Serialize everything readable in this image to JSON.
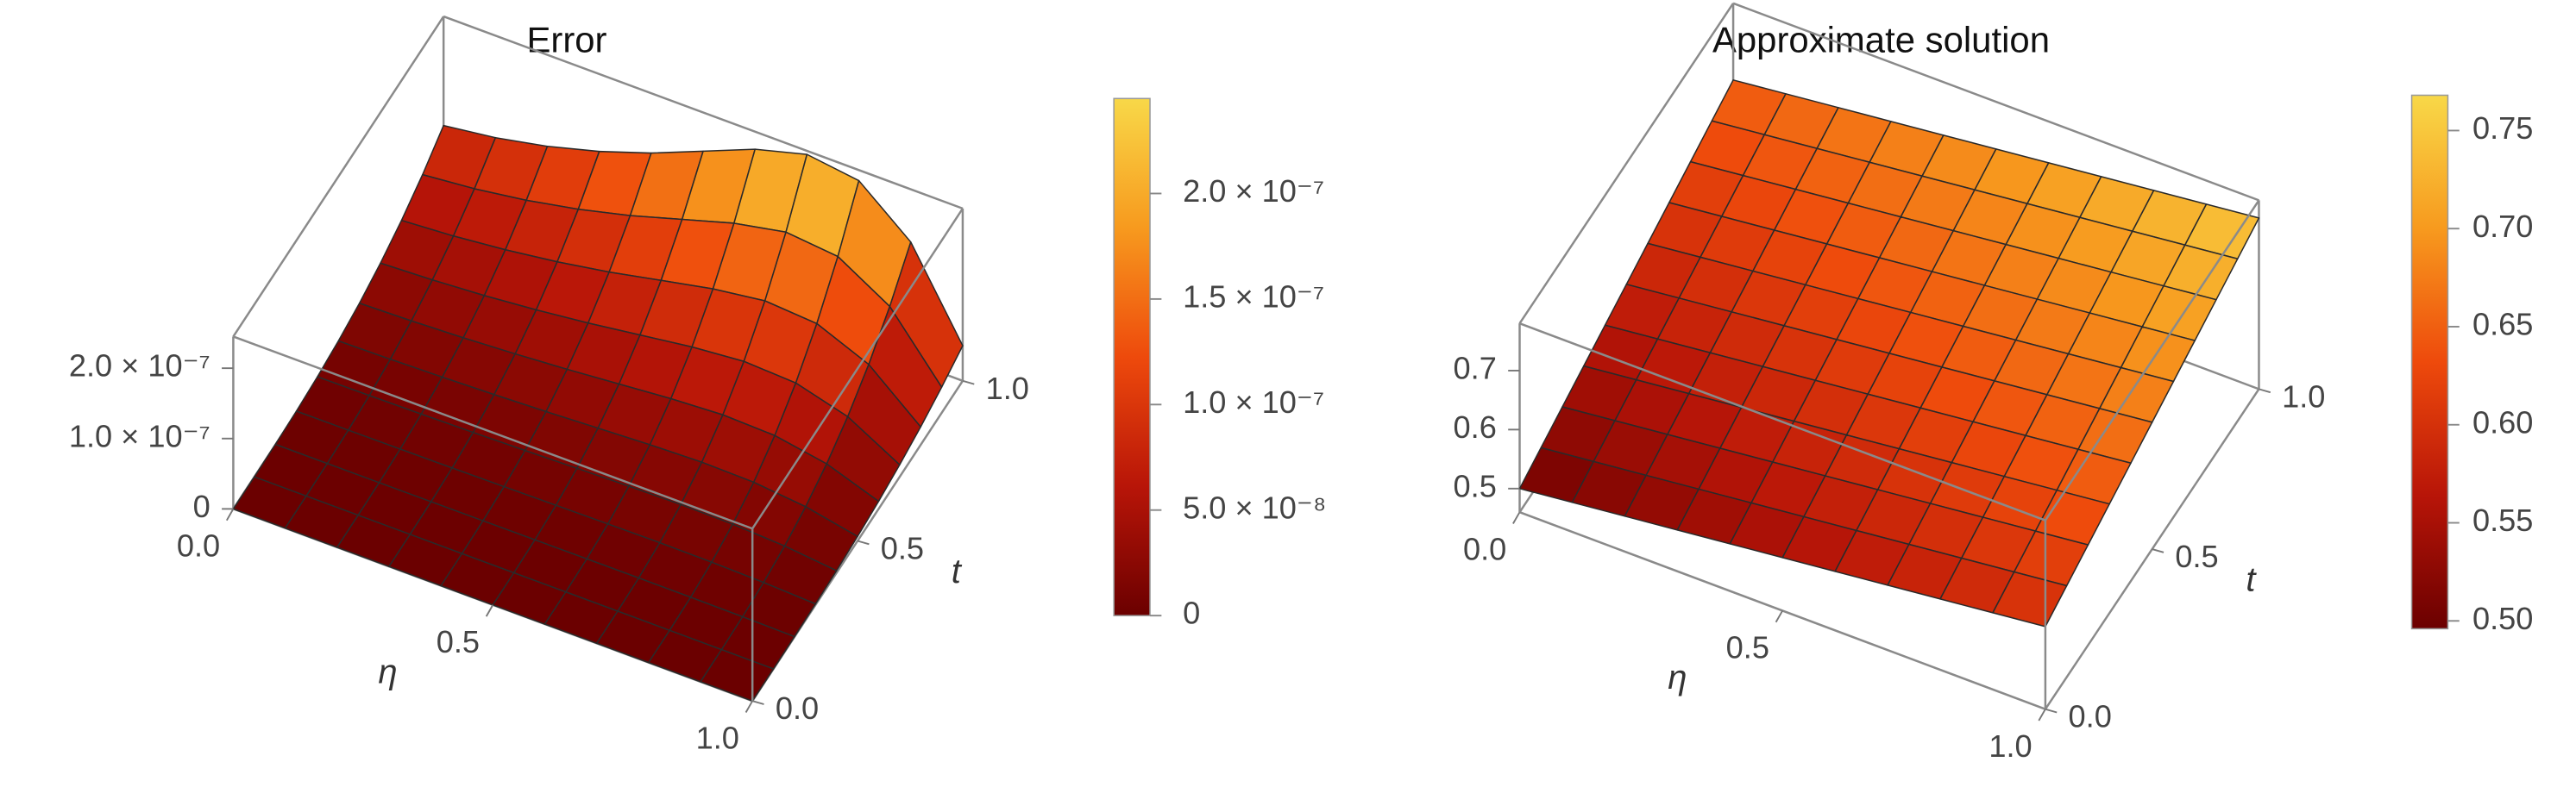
{
  "chart_data": [
    {
      "type": "surface3d",
      "title": "Error",
      "xlabel": "η",
      "ylabel": "t",
      "x": [
        0,
        0.1,
        0.2,
        0.3,
        0.4,
        0.5,
        0.6,
        0.7,
        0.8,
        0.9,
        1
      ],
      "y": [
        0,
        0.1,
        0.2,
        0.3,
        0.4,
        0.5,
        0.6,
        0.7,
        0.8,
        0.9,
        1
      ],
      "z": [
        [
          0,
          0,
          0,
          0,
          0,
          0,
          0,
          0,
          0,
          0,
          0
        ],
        [
          9e-11,
          1e-10,
          1.2e-10,
          1.4e-10,
          1.6e-10,
          1.9e-10,
          2.2e-10,
          2.4e-10,
          2.3e-10,
          1.7e-10,
          5e-11
        ],
        [
          7.2e-10,
          8e-10,
          9.2e-10,
          1.08e-09,
          1.28e-09,
          1.52e-09,
          1.76e-09,
          1.92e-09,
          1.84e-09,
          1.36e-09,
          4e-10
        ],
        [
          2.4e-09,
          2.7e-09,
          3.1e-09,
          3.6e-09,
          4.3e-09,
          5.1e-09,
          5.9e-09,
          6.5e-09,
          6.2e-09,
          4.6e-09,
          1.4e-09
        ],
        [
          5.8e-09,
          6.4e-09,
          7.4e-09,
          8.6e-09,
          1.02e-08,
          1.22e-08,
          1.41e-08,
          1.54e-08,
          1.47e-08,
          1.09e-08,
          3.2e-09
        ],
        [
          1.13e-08,
          1.25e-08,
          1.44e-08,
          1.69e-08,
          2e-08,
          2.38e-08,
          2.75e-08,
          3e-08,
          2.88e-08,
          2.13e-08,
          6.3e-09
        ],
        [
          1.94e-08,
          2.16e-08,
          2.48e-08,
          2.92e-08,
          3.46e-08,
          4.1e-08,
          4.75e-08,
          5.18e-08,
          4.97e-08,
          3.67e-08,
          1.08e-08
        ],
        [
          3.09e-08,
          3.43e-08,
          3.94e-08,
          4.63e-08,
          5.49e-08,
          6.52e-08,
          7.55e-08,
          8.23e-08,
          7.89e-08,
          5.83e-08,
          1.72e-08
        ],
        [
          4.61e-08,
          5.12e-08,
          5.89e-08,
          6.91e-08,
          8.19e-08,
          9.73e-08,
          1.126e-07,
          1.229e-07,
          1.178e-07,
          8.7e-08,
          2.56e-08
        ],
        [
          6.56e-08,
          7.29e-08,
          8.38e-08,
          9.84e-08,
          1.166e-07,
          1.385e-07,
          1.604e-07,
          1.75e-07,
          1.677e-07,
          1.239e-07,
          3.65e-08
        ],
        [
          9e-08,
          1e-07,
          1.15e-07,
          1.35e-07,
          1.6e-07,
          1.9e-07,
          2.2e-07,
          2.4e-07,
          2.3e-07,
          1.7e-07,
          5e-08
        ]
      ],
      "xlim": [
        0,
        1
      ],
      "ylim": [
        0,
        1
      ],
      "zlim": [
        0,
        2.45e-07
      ],
      "xticks": [
        {
          "value": 0,
          "label": "0.0"
        },
        {
          "value": 0.5,
          "label": "0.5"
        },
        {
          "value": 1,
          "label": "1.0"
        }
      ],
      "yticks": [
        {
          "value": 0,
          "label": "0.0"
        },
        {
          "value": 0.5,
          "label": "0.5"
        },
        {
          "value": 1,
          "label": "1.0"
        }
      ],
      "zticks": [
        0,
        {
          "value": 1e-07,
          "label": "1.0 × 10⁻⁷"
        },
        {
          "value": 2e-07,
          "label": "2.0 × 10⁻⁷"
        }
      ],
      "colormap": [
        "#6b0000",
        "#b81508",
        "#ee4a0c",
        "#f79a1e",
        "#f8d848"
      ],
      "clim": [
        0,
        2.45e-07
      ],
      "cticks": [
        0,
        {
          "value": 5e-08,
          "label": "5.0 × 10⁻⁸"
        },
        {
          "value": 1e-07,
          "label": "1.0 × 10⁻⁷"
        },
        {
          "value": 1.5e-07,
          "label": "1.5 × 10⁻⁷"
        },
        {
          "value": 2e-07,
          "label": "2.0 × 10⁻⁷"
        }
      ]
    },
    {
      "type": "surface3d",
      "title": "Approximate  solution",
      "xlabel": "η",
      "ylabel": "t",
      "x": [
        0,
        0.1,
        0.2,
        0.3,
        0.4,
        0.5,
        0.6,
        0.7,
        0.8,
        0.9,
        1
      ],
      "y": [
        0,
        0.1,
        0.2,
        0.3,
        0.4,
        0.5,
        0.6,
        0.7,
        0.8,
        0.9,
        1
      ],
      "z": [
        [
          0.5,
          0.51,
          0.52,
          0.53,
          0.54,
          0.55,
          0.56,
          0.57,
          0.58,
          0.59,
          0.6
        ],
        [
          0.515,
          0.525,
          0.535,
          0.545,
          0.555,
          0.565,
          0.575,
          0.585,
          0.595,
          0.605,
          0.615
        ],
        [
          0.53,
          0.54,
          0.55,
          0.56,
          0.57,
          0.58,
          0.59,
          0.6,
          0.61,
          0.62,
          0.63
        ],
        [
          0.545,
          0.555,
          0.565,
          0.575,
          0.585,
          0.595,
          0.605,
          0.615,
          0.625,
          0.635,
          0.645
        ],
        [
          0.56,
          0.57,
          0.58,
          0.59,
          0.6,
          0.61,
          0.62,
          0.63,
          0.64,
          0.65,
          0.66
        ],
        [
          0.575,
          0.585,
          0.595,
          0.605,
          0.615,
          0.625,
          0.635,
          0.645,
          0.655,
          0.665,
          0.675
        ],
        [
          0.59,
          0.6,
          0.61,
          0.62,
          0.63,
          0.64,
          0.65,
          0.66,
          0.67,
          0.68,
          0.69
        ],
        [
          0.605,
          0.615,
          0.625,
          0.635,
          0.645,
          0.655,
          0.665,
          0.675,
          0.685,
          0.695,
          0.705
        ],
        [
          0.62,
          0.63,
          0.64,
          0.65,
          0.66,
          0.67,
          0.68,
          0.69,
          0.7,
          0.71,
          0.72
        ],
        [
          0.635,
          0.645,
          0.655,
          0.665,
          0.675,
          0.685,
          0.695,
          0.705,
          0.715,
          0.725,
          0.735
        ],
        [
          0.65,
          0.66,
          0.67,
          0.68,
          0.69,
          0.7,
          0.71,
          0.72,
          0.73,
          0.74,
          0.75
        ]
      ],
      "xlim": [
        0,
        1
      ],
      "ylim": [
        0,
        1
      ],
      "zlim": [
        0.46,
        0.78
      ],
      "xticks": [
        {
          "value": 0,
          "label": "0.0"
        },
        {
          "value": 0.5,
          "label": "0.5"
        },
        {
          "value": 1,
          "label": "1.0"
        }
      ],
      "yticks": [
        {
          "value": 0,
          "label": "0.0"
        },
        {
          "value": 0.5,
          "label": "0.5"
        },
        {
          "value": 1,
          "label": "1.0"
        }
      ],
      "zticks": [
        0.5,
        0.6,
        0.7
      ],
      "colormap": [
        "#6b0000",
        "#b81508",
        "#ee4a0c",
        "#f79a1e",
        "#f8d848"
      ],
      "clim": [
        0.496,
        0.768
      ],
      "cticks": [
        {
          "value": 0.5,
          "label": "0.50"
        },
        0.55,
        {
          "value": 0.6,
          "label": "0.60"
        },
        0.65,
        {
          "value": 0.7,
          "label": "0.70"
        },
        0.75
      ]
    }
  ]
}
